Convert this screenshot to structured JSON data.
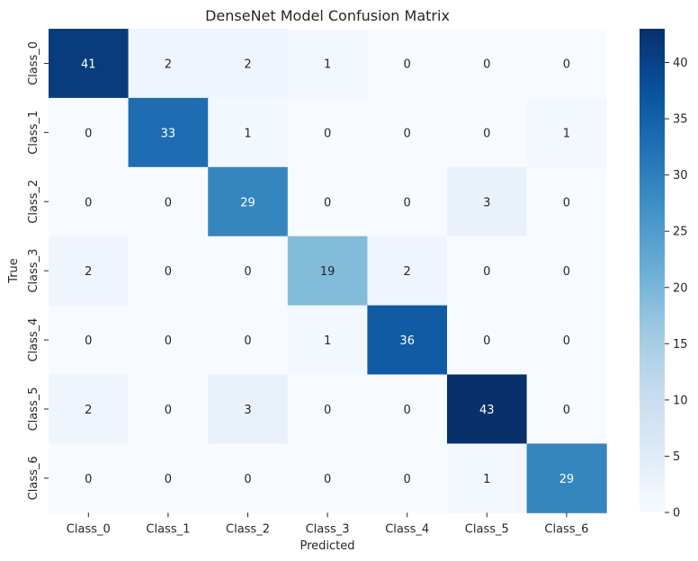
{
  "chart_data": {
    "type": "heatmap",
    "title": "DenseNet Model Confusion Matrix",
    "xlabel": "Predicted",
    "ylabel": "True",
    "x_categories": [
      "Class_0",
      "Class_1",
      "Class_2",
      "Class_3",
      "Class_4",
      "Class_5",
      "Class_6"
    ],
    "y_categories": [
      "Class_0",
      "Class_1",
      "Class_2",
      "Class_3",
      "Class_4",
      "Class_5",
      "Class_6"
    ],
    "values": [
      [
        41,
        2,
        2,
        1,
        0,
        0,
        0
      ],
      [
        0,
        33,
        1,
        0,
        0,
        0,
        1
      ],
      [
        0,
        0,
        29,
        0,
        0,
        3,
        0
      ],
      [
        2,
        0,
        0,
        19,
        2,
        0,
        0
      ],
      [
        0,
        0,
        0,
        1,
        36,
        0,
        0
      ],
      [
        2,
        0,
        3,
        0,
        0,
        43,
        0
      ],
      [
        0,
        0,
        0,
        0,
        0,
        1,
        29
      ]
    ],
    "colormap": "Blues",
    "color_range": [
      0,
      43
    ],
    "colorbar_ticks": [
      0,
      5,
      10,
      15,
      20,
      25,
      30,
      35,
      40
    ],
    "annotated": true,
    "grid": false
  }
}
